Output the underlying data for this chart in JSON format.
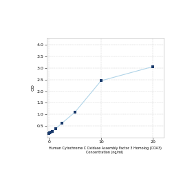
{
  "x": [
    0,
    0.156,
    0.313,
    0.625,
    1.25,
    2.5,
    5,
    10,
    20
  ],
  "y": [
    0.183,
    0.202,
    0.225,
    0.262,
    0.375,
    0.625,
    1.1,
    2.45,
    3.06
  ],
  "line_color": "#b0d4e8",
  "marker_color": "#1a3a6b",
  "marker_size": 3.5,
  "marker_style": "s",
  "xlabel_line1": "Human Cytochrome C Oxidase Assembly Factor 3 Homolog (COA3)",
  "xlabel_line2": "Concentration (ng/ml)",
  "ylabel": "OD",
  "xlim": [
    -0.5,
    22
  ],
  "ylim": [
    0,
    4.3
  ],
  "yticks": [
    0.5,
    1,
    1.5,
    2,
    2.5,
    3,
    3.5,
    4
  ],
  "xticks": [
    0,
    10,
    20
  ],
  "grid": true,
  "background_color": "#ffffff",
  "plot_bg_color": "#ffffff",
  "linewidth": 0.8,
  "tick_labelsize": 4.5,
  "xlabel_fontsize": 3.5,
  "ylabel_fontsize": 4.5
}
